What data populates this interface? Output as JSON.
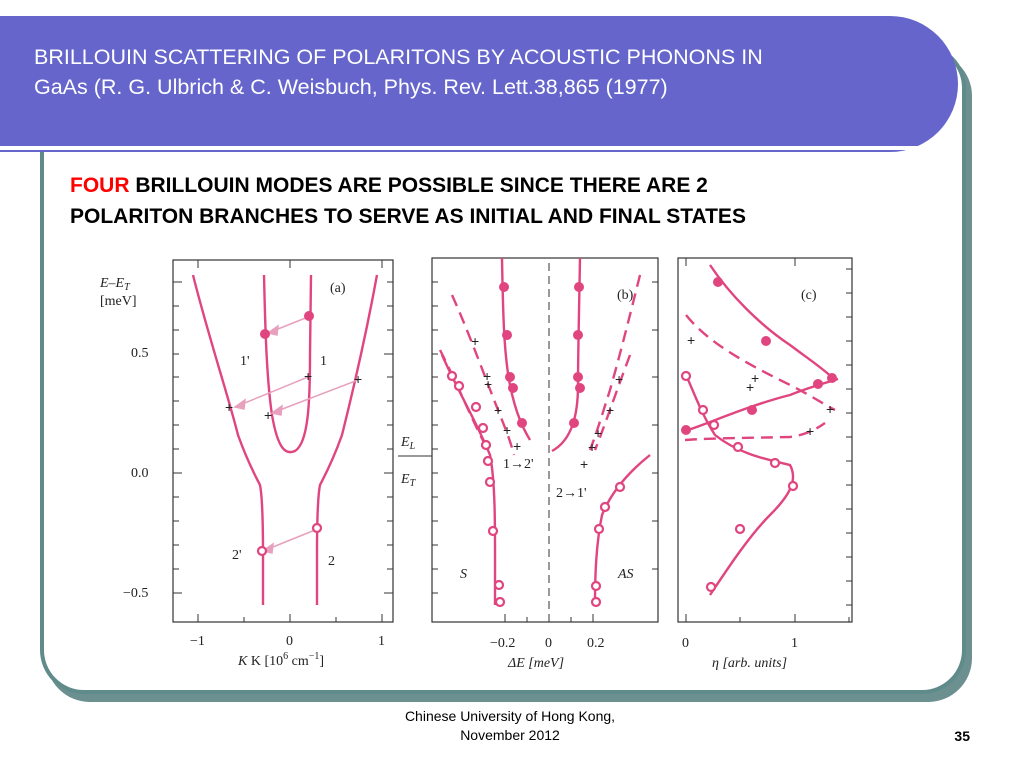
{
  "slide": {
    "title_line1": "BRILLOUIN SCATTERING OF POLARITONS BY ACOUSTIC PHONONS IN",
    "title_line2": "GaAs (R. G. Ulbrich & C. Weisbuch, Phys. Rev. Lett.38,865 (1977)",
    "subtitle_highlight": "FOUR",
    "subtitle_rest_line1": " BRILLOUIN MODES ARE POSSIBLE SINCE THERE ARE 2",
    "subtitle_line2": "POLARITON BRANCHES TO SERVE AS INITIAL AND FINAL STATES",
    "footer_line1": "Chinese University of Hong Kong,",
    "footer_line2": "November 2012",
    "page_number": "35"
  },
  "colors": {
    "title_bar": "#6565cc",
    "frame": "#5f8b8a",
    "curve": "#e0457f",
    "highlight_text": "#ff0000"
  },
  "figure": {
    "panel_a": {
      "label": "(a)",
      "ylabel_line1": "E–E",
      "ylabel_sub": "T",
      "ylabel_unit": "[meV]",
      "yticks": [
        "0.5",
        "0.0",
        "−0.5"
      ],
      "xticks": [
        "−1",
        "0",
        "1"
      ],
      "xlabel": "K [10",
      "xlabel_sup": "6",
      "xlabel_tail": " cm",
      "xlabel_sup2": "−1",
      "xlabel_close": "]",
      "branch_labels": [
        "1'",
        "1",
        "2'",
        "2"
      ]
    },
    "panel_b": {
      "label": "(b)",
      "level_labels": [
        "E",
        "E"
      ],
      "level_subs": [
        "L",
        "T"
      ],
      "transition_labels": [
        "1→2'",
        "2→1'"
      ],
      "side_labels": [
        "S",
        "AS"
      ],
      "xticks": [
        "−0.2",
        "0",
        "0.2"
      ],
      "xlabel": "ΔE  [meV]"
    },
    "panel_c": {
      "label": "(c)",
      "xticks": [
        "0",
        "1"
      ],
      "xlabel": "η [arb. units]"
    },
    "markers": {
      "plus": "+"
    }
  }
}
